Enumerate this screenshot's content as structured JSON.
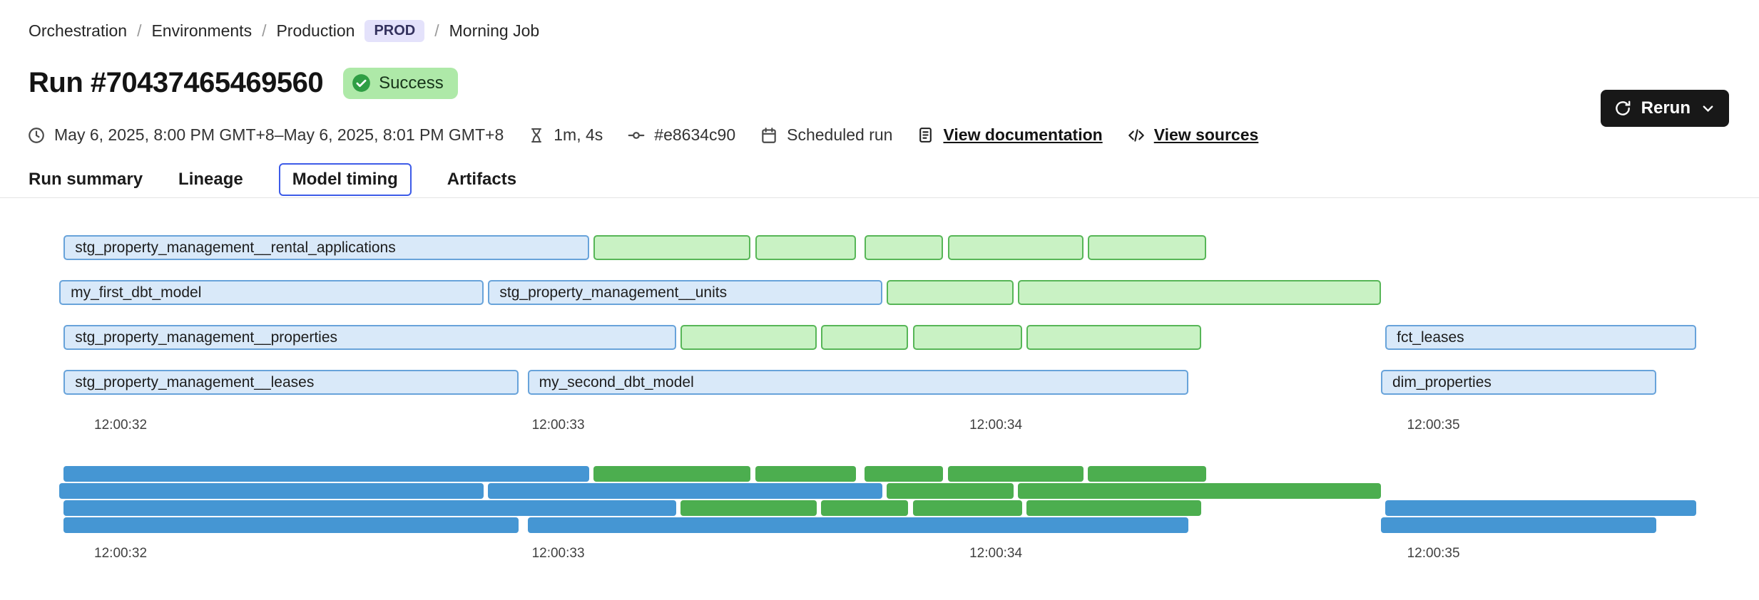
{
  "breadcrumb": {
    "separator": "/",
    "items": [
      "Orchestration",
      "Environments",
      "Production"
    ],
    "env_badge": "PROD",
    "current": "Morning Job"
  },
  "header": {
    "title": "Run #70437465469560",
    "status_badge": "Success",
    "rerun_button": "Rerun"
  },
  "meta": {
    "time_range": "May 6, 2025, 8:00 PM GMT+8–May 6, 2025, 8:01 PM GMT+8",
    "duration": "1m, 4s",
    "commit": "#e8634c90",
    "trigger": "Scheduled run",
    "documentation_link": "View documentation",
    "sources_link": "View sources"
  },
  "tabs": [
    {
      "label": "Run summary",
      "active": false
    },
    {
      "label": "Lineage",
      "active": false
    },
    {
      "label": "Model timing",
      "active": true
    },
    {
      "label": "Artifacts",
      "active": false
    }
  ],
  "colors": {
    "bar_blue_fill": "#d9e9f9",
    "bar_blue_border": "#68a3da",
    "bar_green_fill": "#c9f2c4",
    "bar_green_border": "#57b657",
    "minimap_blue": "#4596d3",
    "minimap_green": "#4cae4f",
    "status_badge_bg": "#aee9a8",
    "status_check": "#2f9e44",
    "env_badge_bg": "#e4e2fb",
    "active_tab_border": "#3d5be8",
    "rerun_button_bg": "#181818"
  },
  "chart_data": {
    "type": "gantt",
    "title": "Model timing",
    "x_unit": "seconds since 12:00:00",
    "time_domain_seconds": [
      31.85,
      35.62
    ],
    "grid": false,
    "ticks": [
      {
        "t": 32,
        "label": "12:00:32"
      },
      {
        "t": 33,
        "label": "12:00:33"
      },
      {
        "t": 34,
        "label": "12:00:34"
      },
      {
        "t": 35,
        "label": "12:00:35"
      }
    ],
    "rows": [
      {
        "bars": [
          {
            "label": "stg_property_management__rental_applications",
            "start": 31.87,
            "end": 33.07,
            "color": "blue"
          },
          {
            "label": "",
            "start": 33.08,
            "end": 33.44,
            "color": "green"
          },
          {
            "label": "",
            "start": 33.45,
            "end": 33.68,
            "color": "green"
          },
          {
            "label": "",
            "start": 33.7,
            "end": 33.88,
            "color": "green"
          },
          {
            "label": "",
            "start": 33.89,
            "end": 34.2,
            "color": "green"
          },
          {
            "label": "",
            "start": 34.21,
            "end": 34.48,
            "color": "green"
          }
        ]
      },
      {
        "bars": [
          {
            "label": "my_first_dbt_model",
            "start": 31.86,
            "end": 32.83,
            "color": "blue"
          },
          {
            "label": "stg_property_management__units",
            "start": 32.84,
            "end": 33.74,
            "color": "blue"
          },
          {
            "label": "",
            "start": 33.75,
            "end": 34.04,
            "color": "green"
          },
          {
            "label": "",
            "start": 34.05,
            "end": 34.88,
            "color": "green"
          }
        ]
      },
      {
        "bars": [
          {
            "label": "stg_property_management__properties",
            "start": 31.87,
            "end": 33.27,
            "color": "blue"
          },
          {
            "label": "",
            "start": 33.28,
            "end": 33.59,
            "color": "green"
          },
          {
            "label": "",
            "start": 33.6,
            "end": 33.8,
            "color": "green"
          },
          {
            "label": "",
            "start": 33.81,
            "end": 34.06,
            "color": "green"
          },
          {
            "label": "",
            "start": 34.07,
            "end": 34.47,
            "color": "green"
          },
          {
            "label": "fct_leases",
            "start": 34.89,
            "end": 35.6,
            "color": "blue"
          }
        ]
      },
      {
        "bars": [
          {
            "label": "stg_property_management__leases",
            "start": 31.87,
            "end": 32.91,
            "color": "blue"
          },
          {
            "label": "my_second_dbt_model",
            "start": 32.93,
            "end": 34.44,
            "color": "blue"
          },
          {
            "label": "dim_properties",
            "start": 34.88,
            "end": 35.51,
            "color": "blue"
          }
        ]
      }
    ]
  }
}
